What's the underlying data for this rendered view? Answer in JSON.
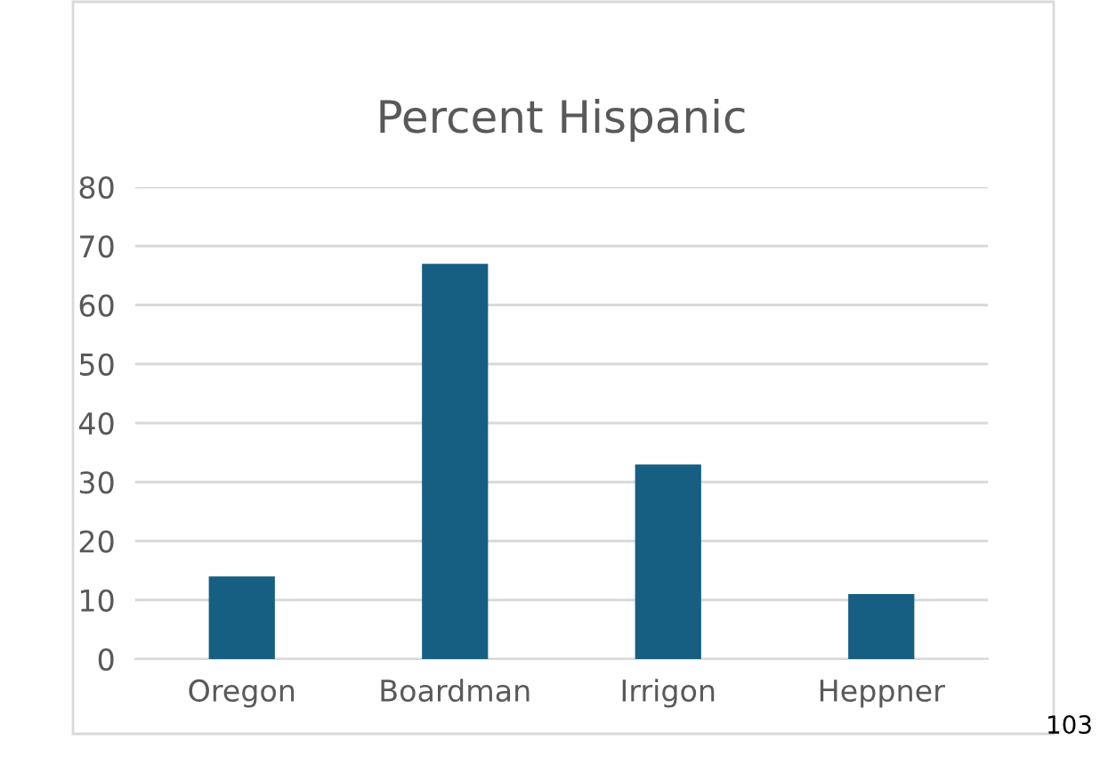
{
  "chart_data": {
    "type": "bar",
    "title": "Percent Hispanic",
    "categories": [
      "Oregon",
      "Boardman",
      "Irrigon",
      "Heppner"
    ],
    "values": [
      14,
      67,
      33,
      11
    ],
    "color": "#175f82",
    "ylim": [
      0,
      80
    ],
    "yticks": [
      0,
      10,
      20,
      30,
      40,
      50,
      60,
      70,
      80
    ],
    "grid": "y",
    "annotations": [
      "103"
    ]
  }
}
